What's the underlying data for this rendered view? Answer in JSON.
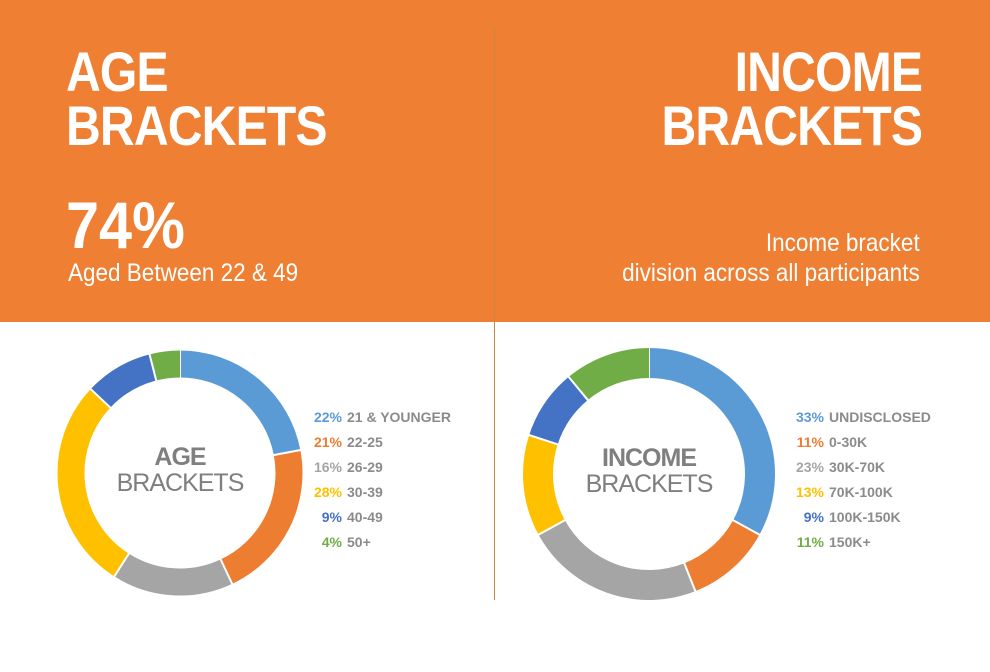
{
  "header": {
    "age_title": [
      "AGE",
      "BRACKETS"
    ],
    "income_title": [
      "INCOME",
      "BRACKETS"
    ],
    "age_stat_value": "74%",
    "age_stat_caption": "Aged Between 22 & 49",
    "income_desc": [
      "Income bracket",
      "division across all participants"
    ]
  },
  "colors": {
    "banner": "#ee7f33",
    "blue": "#5b9bd5",
    "orange": "#ed7d31",
    "gray": "#a5a5a5",
    "yellow": "#ffc000",
    "dark_blue": "#4472c4",
    "green": "#70ad47"
  },
  "chart_data": [
    {
      "type": "pie",
      "donut": true,
      "center_label": [
        "AGE",
        "BRACKETS"
      ],
      "categories": [
        "21 & YOUNGER",
        "22-25",
        "26-29",
        "30-39",
        "40-49",
        "50+"
      ],
      "values": [
        22,
        21,
        16,
        28,
        9,
        4
      ],
      "value_labels": [
        "22%",
        "21%",
        "16%",
        "28%",
        "9%",
        "4%"
      ],
      "colors": [
        "#5b9bd5",
        "#ed7d31",
        "#a5a5a5",
        "#ffc000",
        "#4472c4",
        "#70ad47"
      ],
      "legend": "right"
    },
    {
      "type": "pie",
      "donut": true,
      "center_label": [
        "INCOME",
        "BRACKETS"
      ],
      "categories": [
        "UNDISCLOSED",
        "0-30K",
        "30K-70K",
        "70K-100K",
        "100K-150K",
        "150K+"
      ],
      "values": [
        33,
        11,
        23,
        13,
        9,
        11
      ],
      "value_labels": [
        "33%",
        "11%",
        "23%",
        "13%",
        "9%",
        "11%"
      ],
      "colors": [
        "#5b9bd5",
        "#ed7d31",
        "#a5a5a5",
        "#ffc000",
        "#4472c4",
        "#70ad47"
      ],
      "legend": "right"
    }
  ]
}
